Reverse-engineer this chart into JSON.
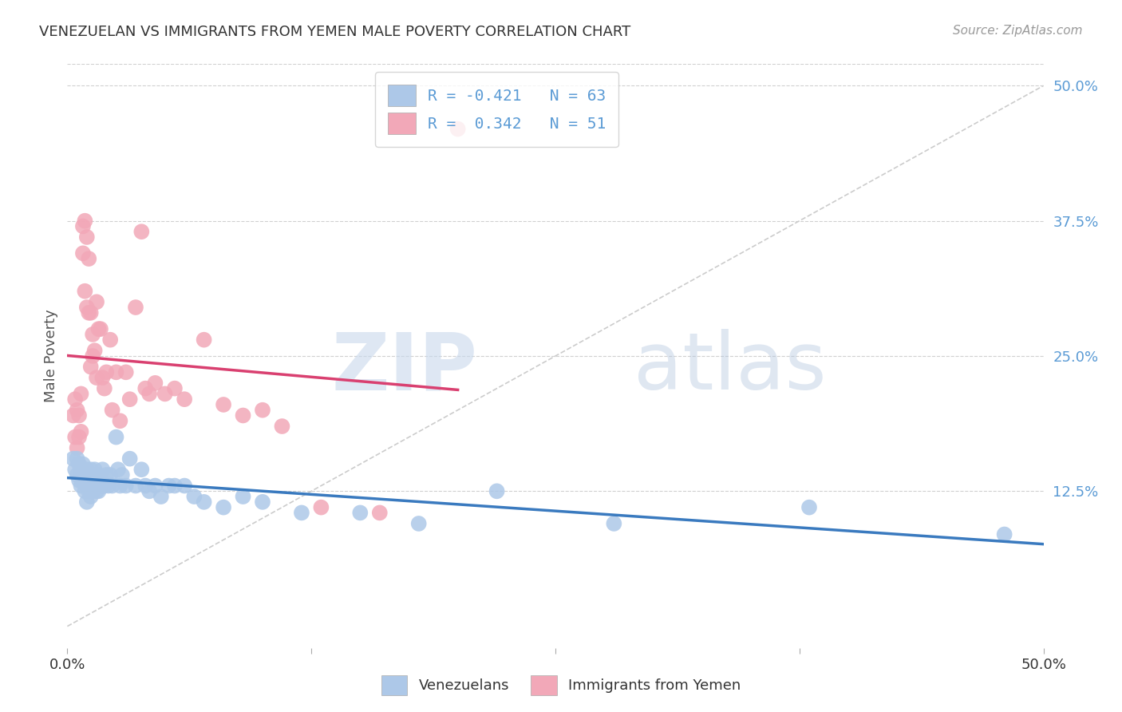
{
  "title": "VENEZUELAN VS IMMIGRANTS FROM YEMEN MALE POVERTY CORRELATION CHART",
  "source": "Source: ZipAtlas.com",
  "ylabel": "Male Poverty",
  "right_yticks": [
    "50.0%",
    "37.5%",
    "25.0%",
    "12.5%"
  ],
  "right_ytick_vals": [
    0.5,
    0.375,
    0.25,
    0.125
  ],
  "legend_entry1": "R = -0.421   N = 63",
  "legend_entry2": "R =  0.342   N = 51",
  "legend_label1": "Venezuelans",
  "legend_label2": "Immigrants from Yemen",
  "watermark_zip": "ZIP",
  "watermark_atlas": "atlas",
  "color_blue": "#adc8e8",
  "color_pink": "#f2a8b8",
  "color_blue_line": "#3a7abf",
  "color_pink_line": "#d94070",
  "color_diag_line": "#cccccc",
  "color_blue_text": "#5b9bd5",
  "xmin": 0.0,
  "xmax": 0.5,
  "ymin": -0.02,
  "ymax": 0.52,
  "venezuelan_x": [
    0.003,
    0.004,
    0.005,
    0.005,
    0.006,
    0.006,
    0.007,
    0.007,
    0.008,
    0.008,
    0.009,
    0.009,
    0.01,
    0.01,
    0.01,
    0.011,
    0.011,
    0.012,
    0.012,
    0.012,
    0.013,
    0.013,
    0.014,
    0.014,
    0.015,
    0.015,
    0.016,
    0.016,
    0.017,
    0.018,
    0.018,
    0.019,
    0.02,
    0.021,
    0.022,
    0.023,
    0.025,
    0.026,
    0.027,
    0.028,
    0.03,
    0.032,
    0.035,
    0.038,
    0.04,
    0.042,
    0.045,
    0.048,
    0.052,
    0.055,
    0.06,
    0.065,
    0.07,
    0.08,
    0.09,
    0.1,
    0.12,
    0.15,
    0.18,
    0.22,
    0.28,
    0.38,
    0.48
  ],
  "venezuelan_y": [
    0.155,
    0.145,
    0.155,
    0.14,
    0.15,
    0.135,
    0.145,
    0.13,
    0.15,
    0.135,
    0.14,
    0.125,
    0.145,
    0.13,
    0.115,
    0.14,
    0.125,
    0.145,
    0.135,
    0.12,
    0.14,
    0.125,
    0.145,
    0.13,
    0.14,
    0.125,
    0.14,
    0.125,
    0.135,
    0.145,
    0.13,
    0.13,
    0.14,
    0.13,
    0.14,
    0.13,
    0.175,
    0.145,
    0.13,
    0.14,
    0.13,
    0.155,
    0.13,
    0.145,
    0.13,
    0.125,
    0.13,
    0.12,
    0.13,
    0.13,
    0.13,
    0.12,
    0.115,
    0.11,
    0.12,
    0.115,
    0.105,
    0.105,
    0.095,
    0.125,
    0.095,
    0.11,
    0.085
  ],
  "yemen_x": [
    0.003,
    0.004,
    0.004,
    0.005,
    0.005,
    0.006,
    0.006,
    0.007,
    0.007,
    0.008,
    0.008,
    0.009,
    0.009,
    0.01,
    0.01,
    0.011,
    0.011,
    0.012,
    0.012,
    0.013,
    0.013,
    0.014,
    0.015,
    0.015,
    0.016,
    0.017,
    0.018,
    0.019,
    0.02,
    0.022,
    0.023,
    0.025,
    0.027,
    0.03,
    0.032,
    0.035,
    0.038,
    0.04,
    0.042,
    0.045,
    0.05,
    0.055,
    0.06,
    0.07,
    0.08,
    0.09,
    0.1,
    0.11,
    0.13,
    0.16,
    0.2
  ],
  "yemen_y": [
    0.195,
    0.21,
    0.175,
    0.2,
    0.165,
    0.195,
    0.175,
    0.215,
    0.18,
    0.37,
    0.345,
    0.375,
    0.31,
    0.36,
    0.295,
    0.34,
    0.29,
    0.29,
    0.24,
    0.27,
    0.25,
    0.255,
    0.3,
    0.23,
    0.275,
    0.275,
    0.23,
    0.22,
    0.235,
    0.265,
    0.2,
    0.235,
    0.19,
    0.235,
    0.21,
    0.295,
    0.365,
    0.22,
    0.215,
    0.225,
    0.215,
    0.22,
    0.21,
    0.265,
    0.205,
    0.195,
    0.2,
    0.185,
    0.11,
    0.105,
    0.46
  ]
}
